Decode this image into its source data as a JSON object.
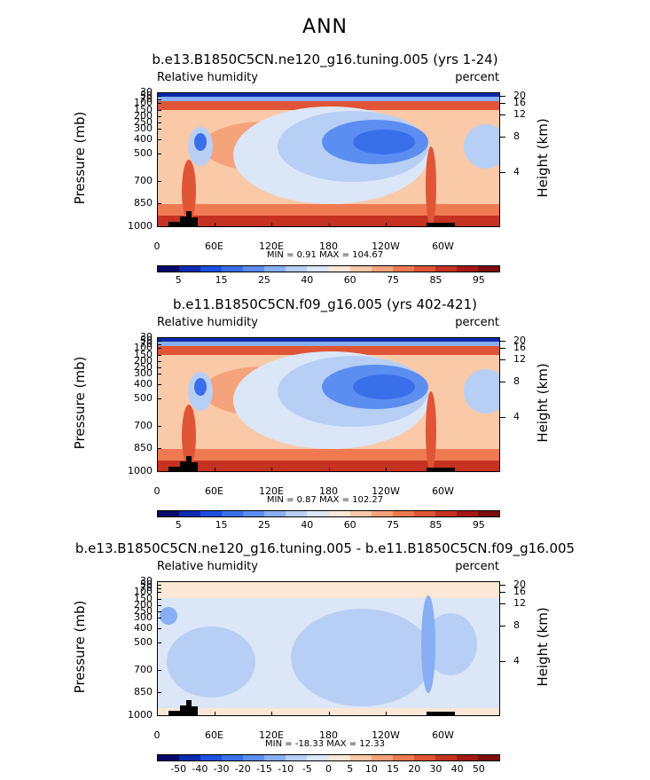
{
  "figure_title": "ANN",
  "chart_data": [
    {
      "type": "heatmap",
      "title": "b.e13.B1850C5CN.ne120_g16.tuning.005 (yrs 1-24)",
      "left_subtitle": "Relative humidity",
      "right_subtitle": "percent",
      "ylabel": "Pressure (mb)",
      "ylabel_right": "Height (km)",
      "x_tick_labels": [
        "0",
        "60E",
        "120E",
        "180",
        "120W",
        "60W"
      ],
      "y_tick_labels": [
        "30",
        "50",
        "70",
        "100",
        "150",
        "200",
        "250",
        "300",
        "400",
        "500",
        "700",
        "850",
        "1000"
      ],
      "height_tick_labels": [
        "20",
        "16",
        "12",
        "8",
        "4"
      ],
      "min_max_text": "MIN =     0.91   MAX =  104.67",
      "min": 0.91,
      "max": 104.67,
      "colorbar_labels": [
        "5",
        "15",
        "25",
        "40",
        "60",
        "75",
        "85",
        "95"
      ],
      "colorbar_colors": [
        "#08086b",
        "#0a2bb0",
        "#1d4fe0",
        "#3a6fea",
        "#5b8ef0",
        "#88aff3",
        "#b7cff5",
        "#dbe6f7",
        "#fbe7d5",
        "#f9c9a8",
        "#f5a37b",
        "#ef7a52",
        "#df5535",
        "#c53221",
        "#a41815",
        "#7d0c0c"
      ]
    },
    {
      "type": "heatmap",
      "title": "b.e11.B1850C5CN.f09_g16.005 (yrs 402-421)",
      "left_subtitle": "Relative humidity",
      "right_subtitle": "percent",
      "ylabel": "Pressure (mb)",
      "ylabel_right": "Height (km)",
      "x_tick_labels": [
        "0",
        "60E",
        "120E",
        "180",
        "120W",
        "60W"
      ],
      "y_tick_labels": [
        "30",
        "50",
        "70",
        "100",
        "150",
        "200",
        "250",
        "300",
        "400",
        "500",
        "700",
        "850",
        "1000"
      ],
      "height_tick_labels": [
        "20",
        "16",
        "12",
        "8",
        "4"
      ],
      "min_max_text": "MIN =     0.87   MAX =  102.27",
      "min": 0.87,
      "max": 102.27,
      "colorbar_labels": [
        "5",
        "15",
        "25",
        "40",
        "60",
        "75",
        "85",
        "95"
      ],
      "colorbar_colors": [
        "#08086b",
        "#0a2bb0",
        "#1d4fe0",
        "#3a6fea",
        "#5b8ef0",
        "#88aff3",
        "#b7cff5",
        "#dbe6f7",
        "#fbe7d5",
        "#f9c9a8",
        "#f5a37b",
        "#ef7a52",
        "#df5535",
        "#c53221",
        "#a41815",
        "#7d0c0c"
      ]
    },
    {
      "type": "heatmap",
      "title": "b.e13.B1850C5CN.ne120_g16.tuning.005 - b.e11.B1850C5CN.f09_g16.005",
      "left_subtitle": "Relative humidity",
      "right_subtitle": "percent",
      "ylabel": "Pressure (mb)",
      "ylabel_right": "Height (km)",
      "x_tick_labels": [
        "0",
        "60E",
        "120E",
        "180",
        "120W",
        "60W"
      ],
      "y_tick_labels": [
        "30",
        "50",
        "70",
        "100",
        "150",
        "200",
        "250",
        "300",
        "400",
        "500",
        "700",
        "850",
        "1000"
      ],
      "height_tick_labels": [
        "20",
        "16",
        "12",
        "8",
        "4"
      ],
      "min_max_text": "MIN =   -18.33   MAX =   12.33",
      "min": -18.33,
      "max": 12.33,
      "colorbar_labels": [
        "-50",
        "-40",
        "-30",
        "-20",
        "-15",
        "-10",
        "-5",
        "0",
        "5",
        "10",
        "15",
        "20",
        "30",
        "40",
        "50"
      ],
      "colorbar_colors": [
        "#08086b",
        "#0a2bb0",
        "#1d4fe0",
        "#3a6fea",
        "#5b8ef0",
        "#88aff3",
        "#b7cff5",
        "#dbe6f7",
        "#fbe7d5",
        "#f9c9a8",
        "#f5a37b",
        "#ef7a52",
        "#df5535",
        "#c53221",
        "#a41815",
        "#7d0c0c"
      ]
    }
  ]
}
